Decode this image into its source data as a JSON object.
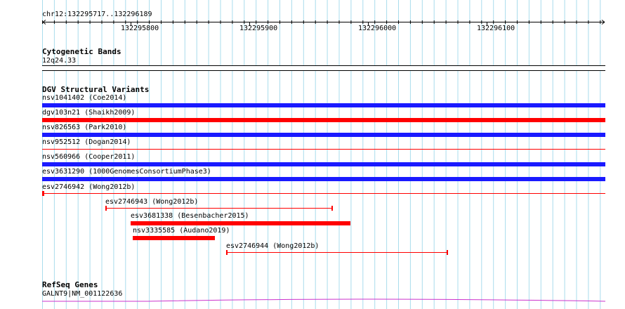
{
  "ruler": {
    "location": "chr12:132295717..132296189",
    "ticks": [
      "132295800",
      "132295900",
      "132296000",
      "132296100"
    ]
  },
  "tracks": {
    "cytoband": {
      "title": "Cytogenetic Bands",
      "band": "12q24.33"
    },
    "dgv": {
      "title": "DGV Structural Variants",
      "features": [
        {
          "label": "nsv1041402 (Coe2014)",
          "color": "#1a1aff"
        },
        {
          "label": "dgv103n21 (Shaikh2009)",
          "color": "#ff0000"
        },
        {
          "label": "nsv826563 (Park2010)",
          "color": "#1a1aff"
        },
        {
          "label": "nsv952512 (Dogan2014)",
          "color": "#ff0000"
        },
        {
          "label": "nsv560966 (Cooper2011)",
          "color": "#1a1aff"
        },
        {
          "label": "esv3631290 (1000GenomesConsortiumPhase3)",
          "color": "#1a1aff"
        },
        {
          "label": "esv2746942 (Wong2012b)",
          "color": "#ff0000"
        },
        {
          "label": "esv2746943 (Wong2012b)",
          "color": "#ff0000"
        },
        {
          "label": "esv3681338 (Besenbacher2015)",
          "color": "#ff0000"
        },
        {
          "label": "nsv3335585 (Audano2019)",
          "color": "#ff0000"
        },
        {
          "label": "esv2746944 (Wong2012b)",
          "color": "#ff0000"
        }
      ]
    },
    "refseq": {
      "title": "RefSeq Genes",
      "gene": "GALNT9|NM_001122636",
      "color": "#cc33cc"
    }
  }
}
